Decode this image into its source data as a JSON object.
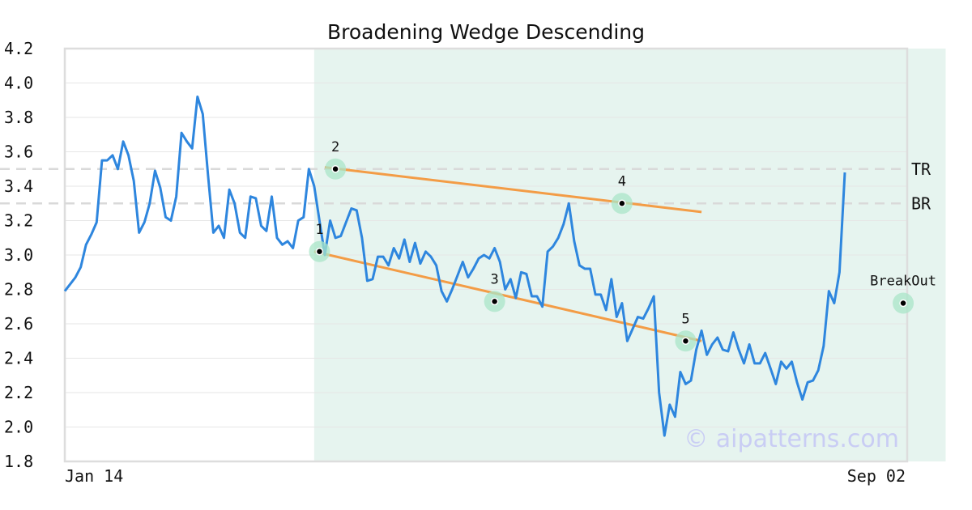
{
  "chart_data": {
    "type": "line",
    "title": "Broadening Wedge Descending",
    "watermark": "© aipatterns.com",
    "ylim": [
      1.8,
      4.2
    ],
    "yticks": [
      "4.2",
      "4.0",
      "3.8",
      "3.6",
      "3.4",
      "3.2",
      "3.0",
      "2.8",
      "2.6",
      "2.4",
      "2.2",
      "2.0",
      "1.8"
    ],
    "x_start_label": "Jan 14",
    "x_end_label": "Sep 02",
    "grid": true,
    "colors": {
      "line": "#2e86de",
      "trend": "#f39c46",
      "highlight": "#e6f4ef",
      "marker_ring": "#a9e6c8",
      "level": "#d9d9d9"
    },
    "pattern_range": [
      47,
      166
    ],
    "series": [
      {
        "values": [
          2.79,
          2.83,
          2.87,
          2.93,
          3.06,
          3.12,
          3.19,
          3.55,
          3.55,
          3.58,
          3.5,
          3.66,
          3.58,
          3.43,
          3.13,
          3.19,
          3.3,
          3.49,
          3.39,
          3.22,
          3.2,
          3.34,
          3.71,
          3.66,
          3.62,
          3.92,
          3.82,
          3.46,
          3.13,
          3.17,
          3.1,
          3.38,
          3.3,
          3.13,
          3.1,
          3.34,
          3.33,
          3.17,
          3.14,
          3.34,
          3.1,
          3.06,
          3.08,
          3.04,
          3.2,
          3.22,
          3.5,
          3.4,
          3.2,
          3.0,
          3.2,
          3.1,
          3.11,
          3.19,
          3.27,
          3.26,
          3.1,
          2.85,
          2.86,
          2.99,
          2.99,
          2.94,
          3.04,
          2.98,
          3.09,
          2.96,
          3.07,
          2.95,
          3.02,
          2.99,
          2.94,
          2.79,
          2.73,
          2.8,
          2.88,
          2.96,
          2.87,
          2.92,
          2.98,
          3.0,
          2.98,
          3.04,
          2.96,
          2.8,
          2.86,
          2.75,
          2.9,
          2.89,
          2.76,
          2.76,
          2.7,
          3.02,
          3.05,
          3.1,
          3.18,
          3.3,
          3.08,
          2.94,
          2.92,
          2.92,
          2.77,
          2.77,
          2.68,
          2.86,
          2.64,
          2.72,
          2.5,
          2.57,
          2.64,
          2.63,
          2.69,
          2.76,
          2.2,
          1.95,
          2.13,
          2.06,
          2.32,
          2.25,
          2.27,
          2.45,
          2.56,
          2.42,
          2.48,
          2.52,
          2.45,
          2.44,
          2.55,
          2.45,
          2.37,
          2.48,
          2.37,
          2.37,
          2.43,
          2.34,
          2.25,
          2.38,
          2.34,
          2.38,
          2.26,
          2.16,
          2.26,
          2.27,
          2.33,
          2.47,
          2.79,
          2.72,
          2.9,
          3.48
        ]
      }
    ],
    "levels": [
      {
        "label": "TR",
        "value": 3.5
      },
      {
        "label": "BR",
        "value": 3.3
      }
    ],
    "trendlines": [
      {
        "from": [
          49,
          3.51
        ],
        "to": [
          120,
          3.25
        ]
      },
      {
        "from": [
          47,
          3.02
        ],
        "to": [
          120,
          2.5
        ]
      }
    ],
    "points": [
      {
        "label": "1",
        "x": 48,
        "y": 3.02
      },
      {
        "label": "2",
        "x": 51,
        "y": 3.5
      },
      {
        "label": "3",
        "x": 81,
        "y": 2.73
      },
      {
        "label": "4",
        "x": 105,
        "y": 3.3
      },
      {
        "label": "5",
        "x": 117,
        "y": 2.5
      },
      {
        "label": "BreakOut",
        "x": 158,
        "y": 2.72
      }
    ]
  }
}
